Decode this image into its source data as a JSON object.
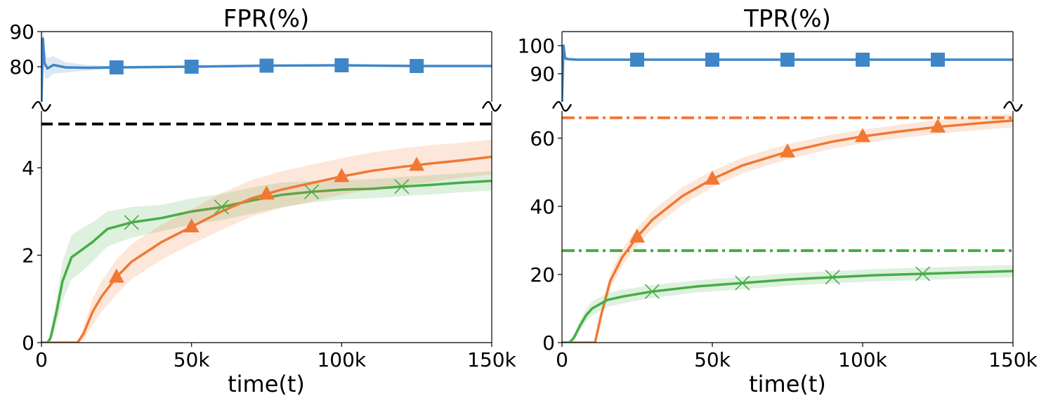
{
  "colors": {
    "blue": "#3f86c8",
    "orange": "#f07834",
    "green": "#46ad47",
    "black": "#000000"
  },
  "chart_data": [
    {
      "type": "line",
      "title": "FPR(%)",
      "xlabel": "time(t)",
      "ylabel": "",
      "xlim": [
        0,
        150000
      ],
      "xticks": [
        0,
        50000,
        100000,
        150000
      ],
      "xtick_labels": [
        "0",
        "50k",
        "100k",
        "150k"
      ],
      "axis_break": true,
      "upper": {
        "ylim": [
          70,
          90
        ],
        "yticks": [
          80,
          90
        ],
        "ytick_labels": [
          "80",
          "90"
        ],
        "series": [
          {
            "color": "blue",
            "marker": "square",
            "x": [
              0,
              500,
              1000,
              2000,
              4000,
              8000,
              15000,
              25000,
              50000,
              75000,
              100000,
              125000,
              150000
            ],
            "y": [
              70,
              88,
              81,
              79.5,
              80.5,
              79.8,
              79.7,
              79.8,
              80.0,
              80.3,
              80.4,
              80.2,
              80.2
            ],
            "band": [
              9,
              6,
              4,
              3,
              2.5,
              1.5,
              0.8,
              0.4,
              0.3,
              0.3,
              0.3,
              0.3,
              0.3
            ],
            "marker_x": [
              25000,
              50000,
              75000,
              100000,
              125000
            ]
          }
        ]
      },
      "lower": {
        "ylim": [
          0,
          5.3
        ],
        "yticks": [
          0,
          2,
          4
        ],
        "ytick_labels": [
          "0",
          "2",
          "4"
        ],
        "hlines": [
          {
            "y": 5.0,
            "color": "black",
            "style": "dashed"
          }
        ],
        "series": [
          {
            "color": "green",
            "marker": "x",
            "x": [
              0,
              2000,
              3000,
              5000,
              7000,
              10000,
              13000,
              17000,
              22000,
              30000,
              40000,
              50000,
              60000,
              70000,
              80000,
              90000,
              100000,
              110000,
              120000,
              130000,
              140000,
              150000
            ],
            "y": [
              0,
              0,
              0.1,
              0.7,
              1.4,
              1.95,
              2.1,
              2.3,
              2.6,
              2.75,
              2.85,
              3.0,
              3.1,
              3.25,
              3.38,
              3.45,
              3.5,
              3.52,
              3.57,
              3.61,
              3.66,
              3.7
            ],
            "band": [
              0,
              0,
              0.1,
              0.3,
              0.45,
              0.5,
              0.5,
              0.45,
              0.4,
              0.35,
              0.3,
              0.3,
              0.3,
              0.3,
              0.28,
              0.25,
              0.22,
              0.22,
              0.22,
              0.22,
              0.22,
              0.22
            ],
            "marker_x": [
              30000,
              60000,
              90000,
              120000
            ]
          },
          {
            "color": "orange",
            "marker": "triangle",
            "x": [
              0,
              12000,
              14000,
              17000,
              20000,
              25000,
              30000,
              40000,
              50000,
              60000,
              70000,
              80000,
              90000,
              100000,
              110000,
              120000,
              130000,
              140000,
              150000
            ],
            "y": [
              0,
              0,
              0.2,
              0.7,
              1.05,
              1.5,
              1.85,
              2.3,
              2.65,
              3.0,
              3.3,
              3.5,
              3.65,
              3.8,
              3.93,
              4.02,
              4.1,
              4.17,
              4.25
            ],
            "band": [
              0,
              0,
              0.15,
              0.3,
              0.35,
              0.4,
              0.4,
              0.4,
              0.4,
              0.42,
              0.42,
              0.42,
              0.42,
              0.42,
              0.42,
              0.42,
              0.42,
              0.4,
              0.4
            ],
            "marker_x": [
              25000,
              50000,
              75000,
              100000,
              125000
            ]
          }
        ]
      }
    },
    {
      "type": "line",
      "title": "TPR(%)",
      "xlabel": "time(t)",
      "ylabel": "",
      "xlim": [
        0,
        150000
      ],
      "xticks": [
        0,
        50000,
        100000,
        150000
      ],
      "xtick_labels": [
        "0",
        "50k",
        "100k",
        "150k"
      ],
      "axis_break": true,
      "upper": {
        "ylim": [
          80,
          105
        ],
        "yticks": [
          90,
          100
        ],
        "ytick_labels": [
          "90",
          "100"
        ],
        "series": [
          {
            "color": "blue",
            "marker": "square",
            "x": [
              0,
              500,
              1000,
              2000,
              5000,
              10000,
              25000,
              50000,
              75000,
              100000,
              125000,
              150000
            ],
            "y": [
              80,
              100,
              95.5,
              95.2,
              95.0,
              95.0,
              95.0,
              95.0,
              95.0,
              95.0,
              95.0,
              95.0
            ],
            "band": [
              3,
              2,
              1,
              0.5,
              0.3,
              0.2,
              0.2,
              0.2,
              0.2,
              0.2,
              0.2,
              0.2
            ],
            "marker_x": [
              25000,
              50000,
              75000,
              100000,
              125000
            ]
          }
        ]
      },
      "lower": {
        "ylim": [
          0,
          68
        ],
        "yticks": [
          0,
          20,
          40,
          60
        ],
        "ytick_labels": [
          "0",
          "20",
          "40",
          "60"
        ],
        "hlines": [
          {
            "y": 66,
            "color": "orange",
            "style": "dashdot"
          },
          {
            "y": 27,
            "color": "green",
            "style": "dashdot"
          }
        ],
        "series": [
          {
            "color": "orange",
            "marker": "triangle",
            "x": [
              0,
              11000,
              13000,
              16000,
              20000,
              25000,
              30000,
              40000,
              50000,
              60000,
              75000,
              90000,
              100000,
              112500,
              125000,
              137500,
              150000
            ],
            "y": [
              0,
              0,
              8,
              18,
              25,
              31,
              36,
              43,
              48,
              52,
              56,
              59,
              60.5,
              62,
              63.3,
              64.3,
              65.2
            ],
            "band": [
              0,
              0,
              1.5,
              2.2,
              2.5,
              2.6,
              2.6,
              2.6,
              2.4,
              2.3,
              2.2,
              2.1,
              2.0,
              2.0,
              2.0,
              2.0,
              2.0
            ],
            "marker_x": [
              25000,
              50000,
              75000,
              100000,
              125000
            ]
          },
          {
            "color": "green",
            "marker": "x",
            "x": [
              0,
              2500,
              4000,
              6000,
              8000,
              10000,
              15000,
              20000,
              30000,
              45000,
              60000,
              75000,
              90000,
              105000,
              120000,
              135000,
              150000
            ],
            "y": [
              0,
              0,
              1.5,
              5,
              8,
              10,
              12.5,
              13.5,
              15,
              16.5,
              17.5,
              18.5,
              19.2,
              19.8,
              20.2,
              20.6,
              21.0
            ],
            "band": [
              0,
              0,
              0.8,
              1.5,
              1.8,
              2.0,
              2.0,
              2.0,
              1.9,
              1.8,
              1.8,
              1.8,
              1.8,
              1.8,
              1.8,
              1.8,
              1.8
            ],
            "marker_x": [
              30000,
              60000,
              90000,
              120000
            ]
          }
        ]
      }
    }
  ]
}
